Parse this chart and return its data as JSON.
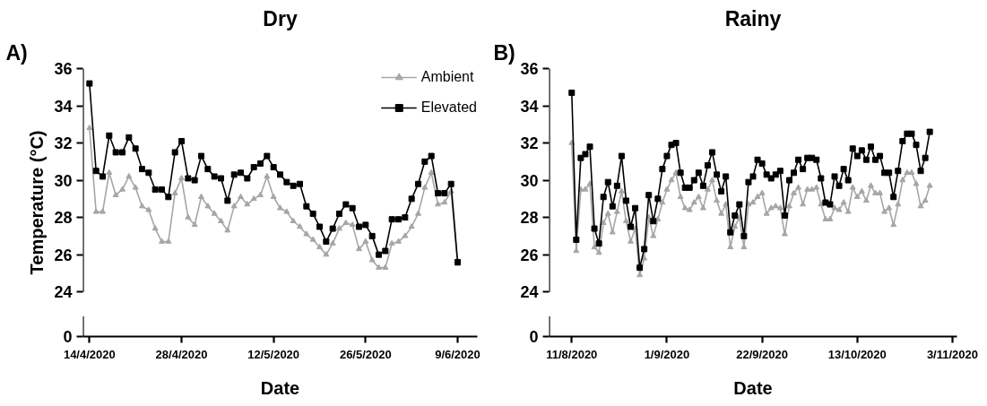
{
  "chart_data": [
    {
      "type": "line",
      "title": "Dry",
      "xlabel": "Date",
      "ylabel": "Temperature (°C)",
      "annotations": [
        "A)",
        "0"
      ],
      "legend": "top right",
      "grid": false,
      "xlim": [
        "2020-04-13",
        "2020-06-12"
      ],
      "xticks": [
        {
          "value": "2020-04-14",
          "label": "14/4/2020"
        },
        {
          "value": "2020-04-28",
          "label": "28/4/2020"
        },
        {
          "value": "2020-05-12",
          "label": "12/5/2020"
        },
        {
          "value": "2020-05-26",
          "label": "26/5/2020"
        },
        {
          "value": "2020-06-09",
          "label": "9/6/2020"
        }
      ],
      "ylim": [
        24,
        36
      ],
      "yticks": [
        24,
        26,
        28,
        30,
        32,
        34,
        36
      ],
      "x": [
        "2020-04-14",
        "2020-04-15",
        "2020-04-16",
        "2020-04-17",
        "2020-04-18",
        "2020-04-19",
        "2020-04-20",
        "2020-04-21",
        "2020-04-22",
        "2020-04-23",
        "2020-04-24",
        "2020-04-25",
        "2020-04-26",
        "2020-04-27",
        "2020-04-28",
        "2020-04-29",
        "2020-04-30",
        "2020-05-01",
        "2020-05-02",
        "2020-05-03",
        "2020-05-04",
        "2020-05-05",
        "2020-05-06",
        "2020-05-07",
        "2020-05-08",
        "2020-05-09",
        "2020-05-10",
        "2020-05-11",
        "2020-05-12",
        "2020-05-13",
        "2020-05-14",
        "2020-05-15",
        "2020-05-16",
        "2020-05-17",
        "2020-05-18",
        "2020-05-19",
        "2020-05-20",
        "2020-05-21",
        "2020-05-22",
        "2020-05-23",
        "2020-05-24",
        "2020-05-25",
        "2020-05-26",
        "2020-05-27",
        "2020-05-28",
        "2020-05-29",
        "2020-05-30",
        "2020-05-31",
        "2020-06-01",
        "2020-06-02",
        "2020-06-03",
        "2020-06-04",
        "2020-06-05",
        "2020-06-06",
        "2020-06-07",
        "2020-06-08",
        "2020-06-09"
      ],
      "series": [
        {
          "name": "Ambient",
          "color": "#a6a6a6",
          "marker": "triangle",
          "values": [
            32.8,
            28.3,
            28.3,
            30.4,
            29.2,
            29.5,
            30.2,
            29.6,
            28.6,
            28.4,
            27.4,
            26.7,
            26.7,
            29.3,
            30.1,
            28.0,
            27.6,
            29.1,
            28.6,
            28.2,
            27.8,
            27.3,
            28.6,
            29.1,
            28.7,
            29.0,
            29.2,
            30.2,
            29.1,
            28.5,
            28.3,
            27.8,
            27.5,
            27.1,
            26.8,
            26.4,
            26.0,
            26.6,
            27.4,
            27.7,
            27.6,
            26.3,
            26.7,
            25.7,
            25.3,
            25.3,
            26.6,
            26.7,
            27.0,
            27.5,
            28.2,
            29.6,
            30.4,
            28.7,
            28.8,
            29.4,
            25.5
          ]
        },
        {
          "name": "Elevated",
          "color": "#000000",
          "marker": "square",
          "values": [
            35.2,
            30.5,
            30.2,
            32.4,
            31.5,
            31.5,
            32.3,
            31.7,
            30.6,
            30.4,
            29.5,
            29.5,
            29.1,
            31.5,
            32.1,
            30.1,
            30.0,
            31.3,
            30.6,
            30.2,
            30.1,
            28.9,
            30.3,
            30.4,
            30.1,
            30.7,
            30.9,
            31.3,
            30.7,
            30.3,
            29.9,
            29.7,
            29.8,
            28.6,
            28.2,
            27.5,
            26.7,
            27.4,
            28.2,
            28.7,
            28.5,
            27.5,
            27.6,
            27.0,
            26.0,
            26.2,
            27.9,
            27.9,
            28.0,
            29.0,
            29.8,
            31.0,
            31.3,
            29.3,
            29.3,
            29.8,
            25.6
          ]
        }
      ]
    },
    {
      "type": "line",
      "title": "Rainy",
      "xlabel": "Date",
      "annotations": [
        "B)",
        "0"
      ],
      "grid": false,
      "xlim": [
        "2020-08-06",
        "2020-11-04"
      ],
      "xticks": [
        {
          "value": "2020-08-11",
          "label": "11/8/2020"
        },
        {
          "value": "2020-09-01",
          "label": "1/9/2020"
        },
        {
          "value": "2020-09-22",
          "label": "22/9/2020"
        },
        {
          "value": "2020-10-13",
          "label": "13/10/2020"
        },
        {
          "value": "2020-11-03",
          "label": "3/11/2020"
        }
      ],
      "ylim": [
        24,
        36
      ],
      "yticks": [
        24,
        26,
        28,
        30,
        32,
        34,
        36
      ],
      "x": [
        "2020-08-11",
        "2020-08-12",
        "2020-08-13",
        "2020-08-14",
        "2020-08-15",
        "2020-08-16",
        "2020-08-17",
        "2020-08-18",
        "2020-08-19",
        "2020-08-20",
        "2020-08-21",
        "2020-08-22",
        "2020-08-23",
        "2020-08-24",
        "2020-08-25",
        "2020-08-26",
        "2020-08-27",
        "2020-08-28",
        "2020-08-29",
        "2020-08-30",
        "2020-08-31",
        "2020-09-01",
        "2020-09-02",
        "2020-09-03",
        "2020-09-04",
        "2020-09-05",
        "2020-09-06",
        "2020-09-07",
        "2020-09-08",
        "2020-09-09",
        "2020-09-10",
        "2020-09-11",
        "2020-09-12",
        "2020-09-13",
        "2020-09-14",
        "2020-09-15",
        "2020-09-16",
        "2020-09-17",
        "2020-09-18",
        "2020-09-19",
        "2020-09-20",
        "2020-09-21",
        "2020-09-22",
        "2020-09-23",
        "2020-09-24",
        "2020-09-25",
        "2020-09-26",
        "2020-09-27",
        "2020-09-28",
        "2020-09-29",
        "2020-09-30",
        "2020-10-01",
        "2020-10-02",
        "2020-10-03",
        "2020-10-04",
        "2020-10-05",
        "2020-10-06",
        "2020-10-07",
        "2020-10-08",
        "2020-10-09",
        "2020-10-10",
        "2020-10-11",
        "2020-10-12",
        "2020-10-13",
        "2020-10-14",
        "2020-10-15",
        "2020-10-16",
        "2020-10-17",
        "2020-10-18",
        "2020-10-19",
        "2020-10-20",
        "2020-10-21",
        "2020-10-22",
        "2020-10-23",
        "2020-10-24",
        "2020-10-25",
        "2020-10-26",
        "2020-10-27",
        "2020-10-28",
        "2020-10-29"
      ],
      "series": [
        {
          "color": "#a6a6a6",
          "marker": "triangle",
          "values": [
            32.0,
            26.2,
            29.5,
            29.5,
            29.8,
            26.4,
            26.1,
            27.7,
            28.2,
            27.2,
            28.3,
            29.4,
            27.8,
            26.7,
            27.4,
            24.9,
            25.8,
            28.0,
            27.0,
            27.9,
            28.8,
            29.5,
            30.0,
            30.4,
            29.1,
            28.5,
            28.4,
            28.8,
            29.1,
            28.5,
            29.5,
            30.0,
            28.9,
            28.2,
            28.7,
            26.4,
            27.5,
            28.0,
            26.4,
            28.7,
            28.8,
            29.1,
            29.3,
            28.2,
            28.5,
            28.6,
            28.5,
            27.1,
            28.6,
            29.3,
            29.6,
            28.7,
            29.5,
            29.5,
            29.6,
            28.7,
            27.9,
            27.9,
            28.5,
            28.4,
            28.8,
            28.3,
            29.6,
            29.1,
            29.4,
            28.9,
            29.7,
            29.3,
            29.3,
            28.3,
            28.5,
            27.6,
            28.7,
            30.0,
            30.4,
            30.4,
            29.8,
            28.6,
            28.9,
            29.7
          ]
        },
        {
          "color": "#000000",
          "marker": "square",
          "values": [
            34.7,
            26.8,
            31.2,
            31.4,
            31.8,
            27.4,
            26.6,
            29.1,
            29.9,
            28.6,
            29.7,
            31.3,
            28.9,
            27.5,
            28.5,
            25.3,
            26.3,
            29.2,
            27.8,
            29.0,
            30.6,
            31.3,
            31.9,
            32.0,
            30.4,
            29.6,
            29.6,
            30.0,
            30.4,
            29.7,
            30.8,
            31.5,
            30.3,
            29.4,
            30.2,
            27.2,
            28.1,
            28.7,
            27.0,
            29.9,
            30.2,
            31.1,
            30.9,
            30.3,
            30.1,
            30.3,
            30.5,
            28.1,
            30.0,
            30.4,
            31.1,
            30.6,
            31.2,
            31.2,
            31.1,
            30.1,
            28.8,
            28.7,
            30.2,
            29.7,
            30.6,
            30.0,
            31.7,
            31.3,
            31.6,
            31.1,
            31.8,
            31.1,
            31.3,
            30.4,
            30.4,
            29.1,
            30.5,
            32.1,
            32.5,
            32.5,
            31.9,
            30.5,
            31.2,
            32.6
          ]
        }
      ]
    }
  ]
}
